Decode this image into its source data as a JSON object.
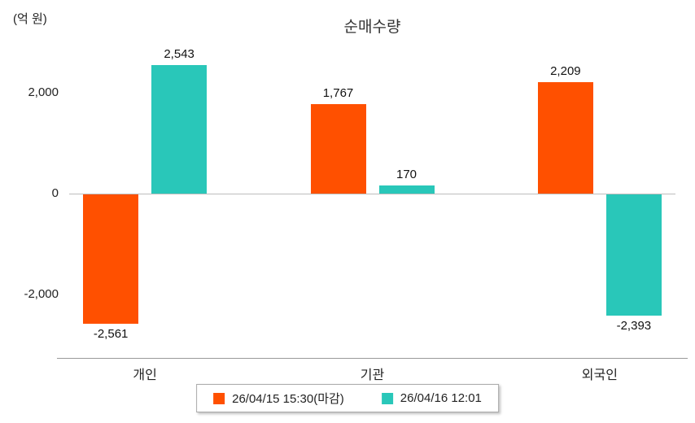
{
  "chart_data": {
    "type": "bar",
    "title": "순매수량",
    "unit_label": "(억 원)",
    "categories": [
      "개인",
      "기관",
      "외국인"
    ],
    "series": [
      {
        "name": "26/04/15 15:30(마감)",
        "color": "#FF5000",
        "values": [
          -2561,
          1767,
          2209
        ]
      },
      {
        "name": "26/04/16 12:01",
        "color": "#29C7B9",
        "values": [
          2543,
          170,
          -2393
        ]
      }
    ],
    "yticks": [
      2000,
      0,
      -2000
    ],
    "ylim": [
      -3250,
      2900
    ],
    "grid": false,
    "legend_position": "bottom"
  }
}
